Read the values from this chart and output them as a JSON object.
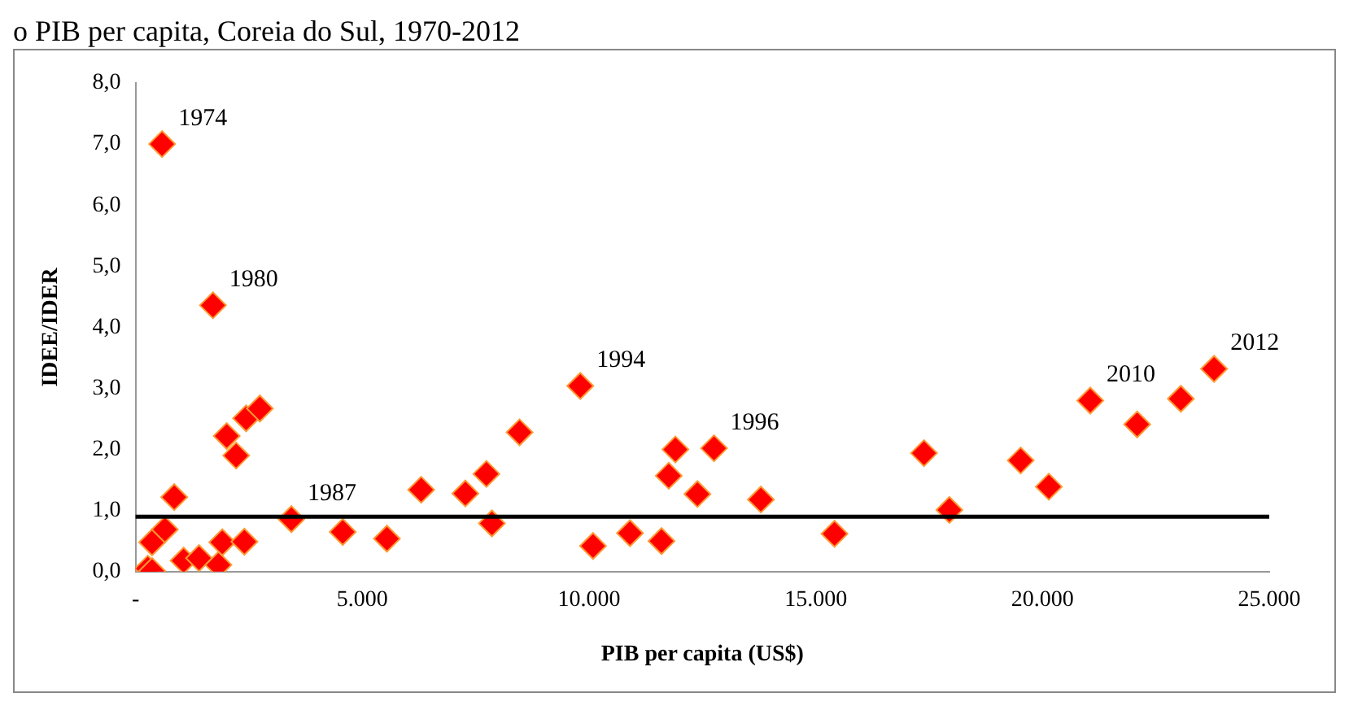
{
  "chart_data": {
    "type": "scatter",
    "title": "o PIB per capita, Coreia do Sul, 1970-2012",
    "xlabel": "PIB per capita (US$)",
    "ylabel": "IDEE/IDER",
    "x": [
      270,
      365,
      365,
      646,
      853,
      1060,
      1400,
      1827,
      1913,
      585,
      2010,
      2218,
      2400,
      2438,
      2741,
      1707,
      3436,
      4569,
      5543,
      6298,
      7273,
      7737,
      7858,
      8468,
      9807,
      10088,
      10903,
      11598,
      11758,
      11904,
      12390,
      12756,
      13790,
      15413,
      17386,
      17946,
      19518,
      20139,
      21053,
      22087,
      23050,
      23783
    ],
    "series": [
      {
        "color": "#ff0000",
        "values": [
          0.05,
          0.01,
          0.48,
          0.69,
          1.22,
          0.18,
          0.22,
          0.11,
          0.48,
          7.0,
          2.22,
          1.9,
          0.49,
          2.51,
          2.67,
          4.36,
          0.86,
          0.65,
          0.54,
          1.34,
          1.28,
          1.6,
          0.79,
          2.28,
          3.04,
          0.42,
          0.63,
          0.5,
          1.57,
          2.0,
          1.27,
          2.02,
          1.18,
          0.62,
          1.94,
          1.01,
          1.82,
          1.39,
          2.8,
          2.41,
          2.83,
          3.32
        ]
      }
    ],
    "marker": "diamond",
    "grid": false,
    "legend": false,
    "xlim": [
      0,
      25000
    ],
    "xticks": [
      {
        "value": 0,
        "label": "-"
      },
      {
        "value": 5000,
        "label": "5.000"
      },
      {
        "value": 10000,
        "label": "10.000"
      },
      {
        "value": 15000,
        "label": "15.000"
      },
      {
        "value": 20000,
        "label": "20.000"
      },
      {
        "value": 25000,
        "label": "25.000"
      }
    ],
    "ylim": [
      0,
      8
    ],
    "yticks": [
      {
        "value": 0,
        "label": "0,0"
      },
      {
        "value": 1,
        "label": "1,0"
      },
      {
        "value": 2,
        "label": "2,0"
      },
      {
        "value": 3,
        "label": "3,0"
      },
      {
        "value": 4,
        "label": "4,0"
      },
      {
        "value": 5,
        "label": "5,0"
      },
      {
        "value": 6,
        "label": "6,0"
      },
      {
        "value": 7,
        "label": "7,0"
      },
      {
        "value": 8,
        "label": "8,0"
      }
    ],
    "ref_lines": [
      {
        "axis": "y",
        "value": 0.9,
        "color": "#000000"
      }
    ],
    "annotations": [
      {
        "text": "1974",
        "x": 585,
        "y": 7.0
      },
      {
        "text": "1980",
        "x": 1707,
        "y": 4.36
      },
      {
        "text": "1987",
        "x": 3436,
        "y": 0.86
      },
      {
        "text": "1994",
        "x": 9807,
        "y": 3.04
      },
      {
        "text": "1996",
        "x": 12756,
        "y": 2.02
      },
      {
        "text": "2010",
        "x": 21053,
        "y": 2.8
      },
      {
        "text": "2012",
        "x": 23783,
        "y": 3.32
      }
    ]
  }
}
